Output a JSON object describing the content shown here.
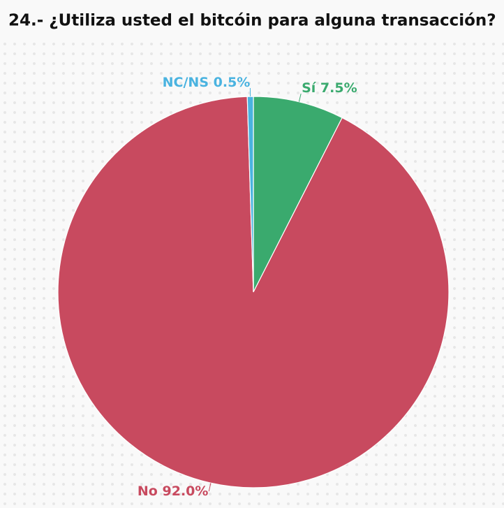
{
  "chart_data": {
    "type": "pie",
    "title": "24.- ¿Utiliza usted el bitcóin para alguna transacción?",
    "categories": [
      "Sí",
      "No",
      "NC/NS"
    ],
    "values": [
      7.5,
      92.0,
      0.5
    ],
    "value_labels": [
      "7.5%",
      "92.0%",
      "0.5%"
    ],
    "colors": [
      "#3aaa6e",
      "#c84a5f",
      "#4ab3e0"
    ]
  }
}
